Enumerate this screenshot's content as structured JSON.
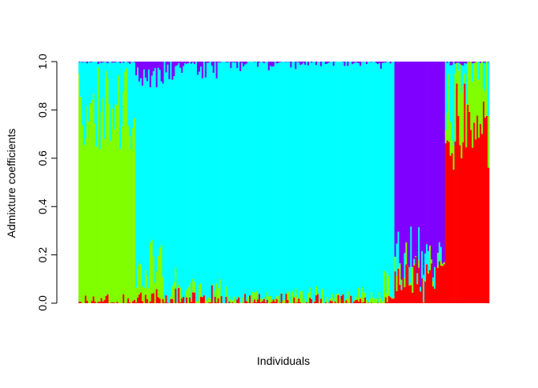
{
  "chart_data": {
    "type": "bar",
    "stacked": true,
    "title": "",
    "xlabel": "Individuals",
    "ylabel": "Admixture coefficients",
    "ylim": [
      0,
      1
    ],
    "y_ticks": [
      "0.0",
      "0.2",
      "0.4",
      "0.6",
      "0.8",
      "1.0"
    ],
    "y_tick_values": [
      0,
      0.2,
      0.4,
      0.6,
      0.8,
      1.0
    ],
    "grid": false,
    "legend": "none",
    "colors": {
      "red": "#FF0000",
      "green": "#80FF00",
      "cyan": "#00FFFF",
      "purple": "#8000FF"
    },
    "stack_order_bottom_to_top": [
      "red",
      "green",
      "cyan",
      "purple"
    ],
    "n_individuals": 260,
    "groups": [
      {
        "label": "",
        "count": 36,
        "red": [
          0,
          0.04
        ],
        "green": [
          0.6,
          0.98
        ],
        "purple": [
          0,
          0.01
        ]
      },
      {
        "label": "",
        "count": 18,
        "red": [
          0,
          0.06
        ],
        "green": [
          0.06,
          0.28
        ],
        "purple": [
          0.01,
          0.12
        ]
      },
      {
        "label": "",
        "count": 36,
        "red": [
          0,
          0.08
        ],
        "green": [
          0,
          0.1
        ],
        "purple": [
          0,
          0.08
        ]
      },
      {
        "label": "",
        "count": 48,
        "red": [
          0,
          0.04
        ],
        "green": [
          0,
          0.06
        ],
        "purple": [
          0,
          0.04
        ]
      },
      {
        "label": "",
        "count": 52,
        "red": [
          0,
          0.04
        ],
        "green": [
          0,
          0.07
        ],
        "purple": [
          0,
          0.02
        ]
      },
      {
        "label": "",
        "count": 10,
        "red": [
          0,
          0.03
        ],
        "green": [
          0,
          0.2
        ],
        "purple": [
          0,
          0.04
        ]
      },
      {
        "label": "",
        "count": 32,
        "red": [
          0,
          0.2
        ],
        "green": [
          0,
          0.12
        ],
        "purple": [
          0.68,
          0.98
        ]
      },
      {
        "label": "",
        "count": 28,
        "red": [
          0.55,
          0.95
        ],
        "green": [
          0.03,
          0.35
        ],
        "purple": [
          0,
          0.02
        ]
      }
    ]
  }
}
